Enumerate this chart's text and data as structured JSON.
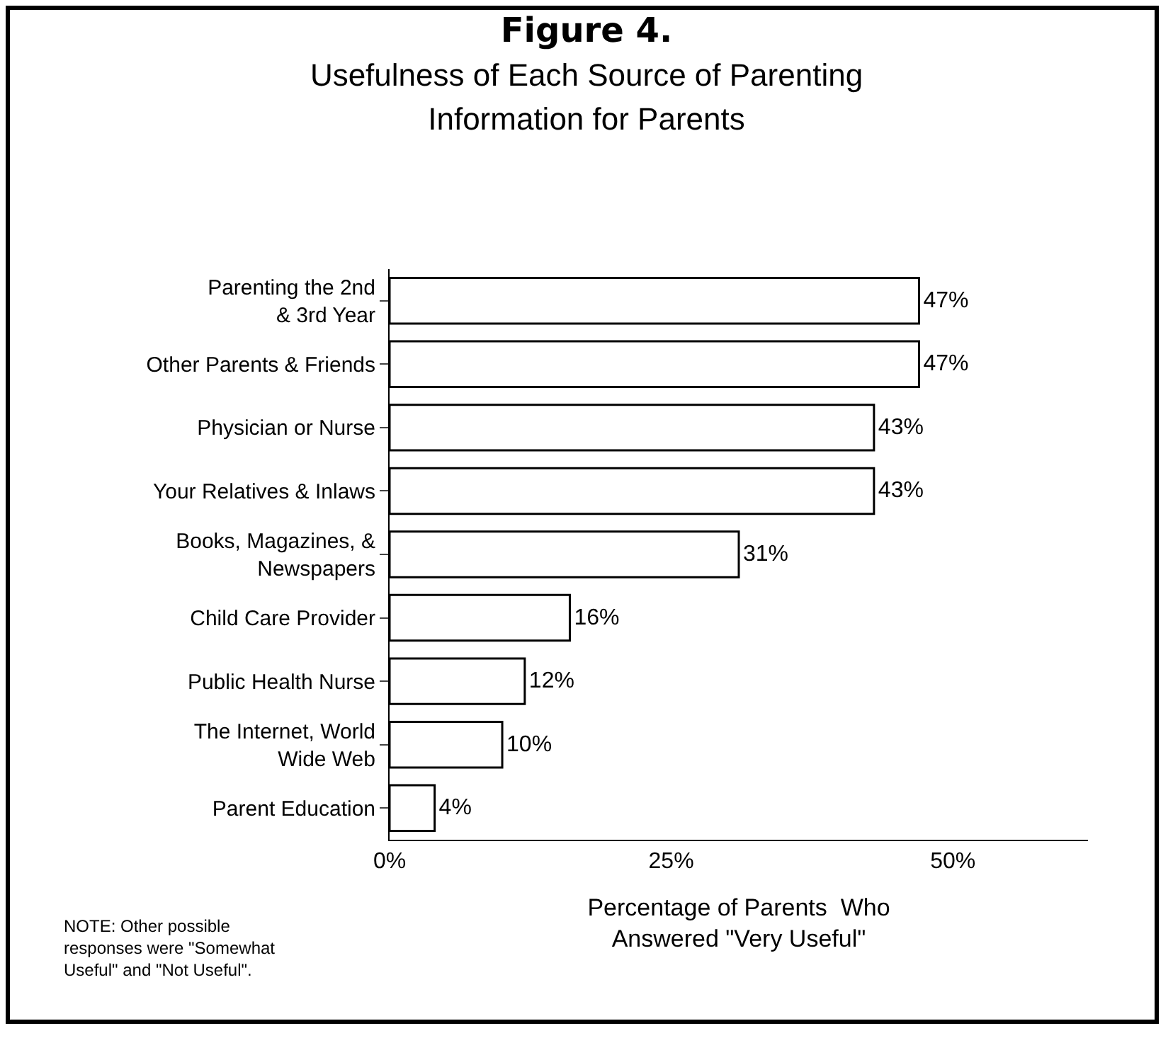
{
  "chart_data": {
    "type": "bar",
    "orientation": "horizontal",
    "title": "Figure 4.",
    "subtitle": "Usefulness of Each Source of Parenting\nInformation for Parents",
    "categories": [
      "Parenting the 2nd\n& 3rd Year",
      "Other Parents & Friends",
      "Physician or Nurse",
      "Your Relatives & Inlaws",
      "Books, Magazines, &\nNewspapers",
      "Child Care Provider",
      "Public Health Nurse",
      "The Internet, World\nWide Web",
      "Parent Education"
    ],
    "values": [
      47,
      47,
      43,
      43,
      31,
      16,
      12,
      10,
      4
    ],
    "value_labels": [
      "47%",
      "47%",
      "43%",
      "43%",
      "31%",
      "16%",
      "12%",
      "10%",
      "4%"
    ],
    "color": "#ffffff",
    "xlim": [
      0,
      62
    ],
    "xticks": [
      {
        "value": 0,
        "label": "0%"
      },
      {
        "value": 25,
        "label": "25%"
      },
      {
        "value": 50,
        "label": "50%"
      }
    ],
    "xlabel": "Percentage of Parents  Who\nAnswered \"Very Useful\"",
    "annotations": [
      "NOTE: Other possible\nresponses were \"Somewhat\nUseful\" and \"Not Useful\"."
    ],
    "grid": false
  }
}
